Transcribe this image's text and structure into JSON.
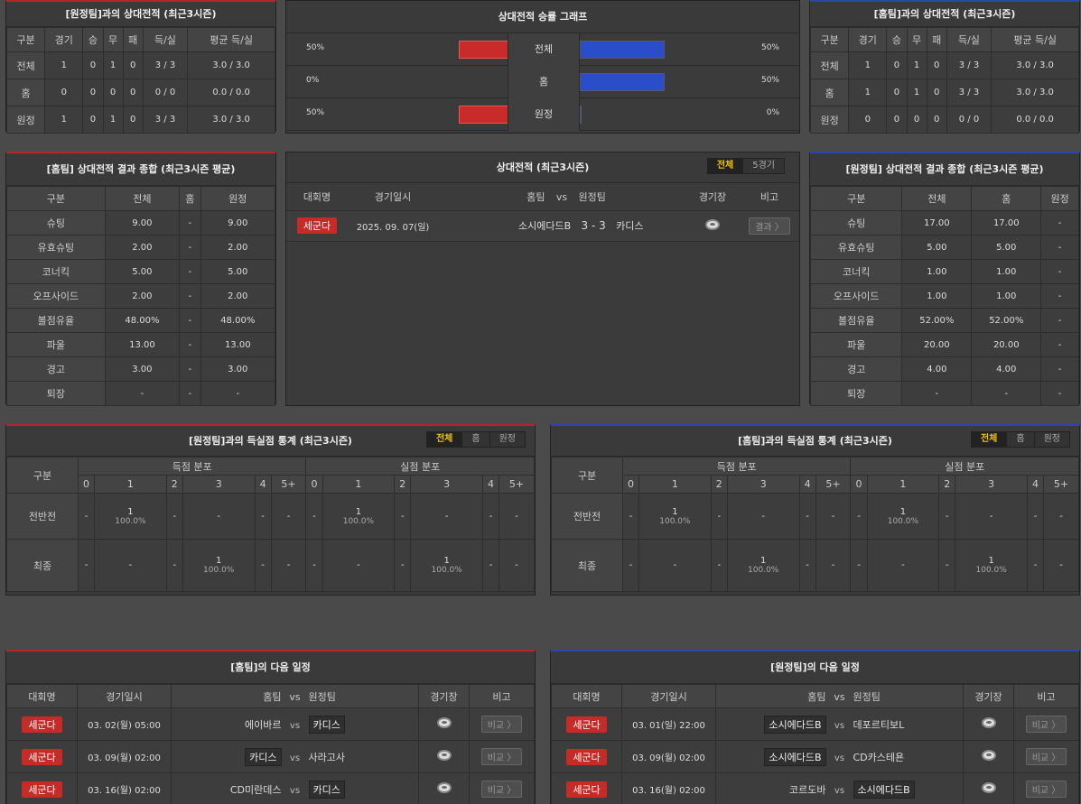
{
  "h2h_away": {
    "title": "[원정팀]과의 상대전적 (최근3시즌)",
    "headers": [
      "구분",
      "경기",
      "승",
      "무",
      "패",
      "득/실",
      "평균 득/실"
    ],
    "rows": [
      [
        "전체",
        "1",
        "0",
        "1",
        "0",
        "3 / 3",
        "3.0 / 3.0"
      ],
      [
        "홈",
        "0",
        "0",
        "0",
        "0",
        "0 / 0",
        "0.0 / 0.0"
      ],
      [
        "원정",
        "1",
        "0",
        "1",
        "0",
        "3 / 3",
        "3.0 / 3.0"
      ]
    ]
  },
  "h2h_home": {
    "title": "[홈팀]과의 상대전적 (최근3시즌)",
    "headers": [
      "구분",
      "경기",
      "승",
      "무",
      "패",
      "득/실",
      "평균 득/실"
    ],
    "rows": [
      [
        "전체",
        "1",
        "0",
        "1",
        "0",
        "3 / 3",
        "3.0 / 3.0"
      ],
      [
        "홈",
        "1",
        "0",
        "1",
        "0",
        "3 / 3",
        "3.0 / 3.0"
      ],
      [
        "원정",
        "0",
        "0",
        "0",
        "0",
        "0 / 0",
        "0.0 / 0.0"
      ]
    ]
  },
  "win_graph": {
    "title": "상대전적 승률 그래프",
    "rows": [
      {
        "label": "전체",
        "left": "50%",
        "right": "50%",
        "left_pct": 50,
        "right_pct": 50
      },
      {
        "label": "홈",
        "left": "0%",
        "right": "50%",
        "left_pct": 0,
        "right_pct": 50
      },
      {
        "label": "원정",
        "left": "50%",
        "right": "0%",
        "left_pct": 50,
        "right_pct": 0
      }
    ]
  },
  "summary_home": {
    "title": "[홈팀] 상대전적 결과 종합 (최근3시즌 평균)",
    "headers": [
      "구분",
      "전체",
      "홈",
      "원정"
    ],
    "rows": [
      [
        "슈팅",
        "9.00",
        "-",
        "9.00"
      ],
      [
        "유효슈팅",
        "2.00",
        "-",
        "2.00"
      ],
      [
        "코너킥",
        "5.00",
        "-",
        "5.00"
      ],
      [
        "오프사이드",
        "2.00",
        "-",
        "2.00"
      ],
      [
        "볼점유율",
        "48.00%",
        "-",
        "48.00%"
      ],
      [
        "파울",
        "13.00",
        "-",
        "13.00"
      ],
      [
        "경고",
        "3.00",
        "-",
        "3.00"
      ],
      [
        "퇴장",
        "-",
        "-",
        "-"
      ]
    ]
  },
  "summary_away": {
    "title": "[원정팀] 상대전적 결과 종합 (최근3시즌 평균)",
    "headers": [
      "구분",
      "전체",
      "홈",
      "원정"
    ],
    "rows": [
      [
        "슈팅",
        "17.00",
        "17.00",
        "-"
      ],
      [
        "유효슈팅",
        "5.00",
        "5.00",
        "-"
      ],
      [
        "코너킥",
        "1.00",
        "1.00",
        "-"
      ],
      [
        "오프사이드",
        "1.00",
        "1.00",
        "-"
      ],
      [
        "볼점유율",
        "52.00%",
        "52.00%",
        "-"
      ],
      [
        "파울",
        "20.00",
        "20.00",
        "-"
      ],
      [
        "경고",
        "4.00",
        "4.00",
        "-"
      ],
      [
        "퇴장",
        "-",
        "-",
        "-"
      ]
    ]
  },
  "h2h_list": {
    "title": "상대전적 (최근3시즌)",
    "tabs": [
      "전체",
      "5경기"
    ],
    "headers": {
      "league": "대회명",
      "date": "경기일시",
      "home": "홈팀",
      "vs": "vs",
      "away": "원정팀",
      "stadium": "경기장",
      "note": "비고"
    },
    "rows": [
      {
        "league": "세군다",
        "date": "2025. 09. 07(일)",
        "home": "소시에다드B",
        "score": "3 - 3",
        "away": "카디스",
        "note": "결과 〉"
      }
    ]
  },
  "goals_away": {
    "title": "[원정팀]과의 득실점 통계 (최근3시즌)",
    "tabs": [
      "전체",
      "홈",
      "원정"
    ],
    "label_col": "구분",
    "group_for": "득점 분포",
    "group_against": "실점 분포",
    "buckets": [
      "0",
      "1",
      "2",
      "3",
      "4",
      "5+"
    ],
    "rows": [
      {
        "label": "전반전",
        "for": [
          "-",
          {
            "n": "1",
            "p": "100.0%"
          },
          "-",
          "-",
          "-",
          "-"
        ],
        "against": [
          "-",
          {
            "n": "1",
            "p": "100.0%"
          },
          "-",
          "-",
          "-",
          "-"
        ]
      },
      {
        "label": "최종",
        "for": [
          "-",
          "-",
          "-",
          {
            "n": "1",
            "p": "100.0%"
          },
          "-",
          "-"
        ],
        "against": [
          "-",
          "-",
          "-",
          {
            "n": "1",
            "p": "100.0%"
          },
          "-",
          "-"
        ]
      }
    ]
  },
  "goals_home": {
    "title": "[홈팀]과의 득실점 통계 (최근3시즌)",
    "tabs": [
      "전체",
      "홈",
      "원정"
    ],
    "label_col": "구분",
    "group_for": "득점 분포",
    "group_against": "실점 분포",
    "buckets": [
      "0",
      "1",
      "2",
      "3",
      "4",
      "5+"
    ],
    "rows": [
      {
        "label": "전반전",
        "for": [
          "-",
          {
            "n": "1",
            "p": "100.0%"
          },
          "-",
          "-",
          "-",
          "-"
        ],
        "against": [
          "-",
          {
            "n": "1",
            "p": "100.0%"
          },
          "-",
          "-",
          "-",
          "-"
        ]
      },
      {
        "label": "최종",
        "for": [
          "-",
          "-",
          "-",
          {
            "n": "1",
            "p": "100.0%"
          },
          "-",
          "-"
        ],
        "against": [
          "-",
          "-",
          "-",
          {
            "n": "1",
            "p": "100.0%"
          },
          "-",
          "-"
        ]
      }
    ]
  },
  "next_home": {
    "title": "[홈팀]의 다음 일정",
    "headers": {
      "league": "대회명",
      "date": "경기일시",
      "home": "홈팀",
      "vs": "vs",
      "away": "원정팀",
      "stadium": "경기장",
      "note": "비고"
    },
    "rows": [
      {
        "league": "세군다",
        "date": "03. 02(월) 05:00",
        "home": "에이바르",
        "away": "카디스",
        "boxed": "away",
        "note": "비교 〉"
      },
      {
        "league": "세군다",
        "date": "03. 09(월) 02:00",
        "home": "카디스",
        "away": "사라고사",
        "boxed": "home",
        "note": "비교 〉"
      },
      {
        "league": "세군다",
        "date": "03. 16(월) 02:00",
        "home": "CD미란데스",
        "away": "카디스",
        "boxed": "away",
        "note": "비교 〉"
      }
    ]
  },
  "next_away": {
    "title": "[원정팀]의 다음 일정",
    "headers": {
      "league": "대회명",
      "date": "경기일시",
      "home": "홈팀",
      "vs": "vs",
      "away": "원정팀",
      "stadium": "경기장",
      "note": "비고"
    },
    "rows": [
      {
        "league": "세군다",
        "date": "03. 01(일) 22:00",
        "home": "소시에다드B",
        "away": "데포르티보L",
        "boxed": "home",
        "note": "비교 〉"
      },
      {
        "league": "세군다",
        "date": "03. 09(월) 02:00",
        "home": "소시에다드B",
        "away": "CD카스테욘",
        "boxed": "home",
        "note": "비교 〉"
      },
      {
        "league": "세군다",
        "date": "03. 16(월) 02:00",
        "home": "코르도바",
        "away": "소시에다드B",
        "boxed": "away",
        "note": "비교 〉"
      }
    ]
  }
}
